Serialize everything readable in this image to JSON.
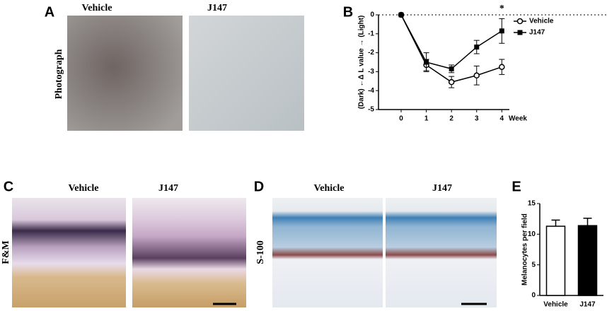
{
  "panels": {
    "A": {
      "label": "A",
      "columns": [
        "Vehicle",
        "J147"
      ],
      "row_label": "Photograph"
    },
    "C": {
      "label": "C",
      "columns": [
        "Vehicle",
        "J147"
      ],
      "row_label": "F&M"
    },
    "D": {
      "label": "D",
      "columns": [
        "Vehicle",
        "J147"
      ],
      "row_label": "S-100"
    }
  },
  "chart_data": [
    {
      "type": "line",
      "panel_label": "B",
      "ylabel": "(Dark) ←Δ L value → (Light)",
      "xlabel": "Week",
      "annotation": "*",
      "x": [
        0,
        1,
        2,
        3,
        4
      ],
      "xlim": [
        -0.9,
        4.3
      ],
      "xticks": [
        0,
        1,
        2,
        3,
        4
      ],
      "ylim": [
        -5,
        0
      ],
      "yticks": [
        0,
        -1,
        -2,
        -3,
        -4,
        -5
      ],
      "series": [
        {
          "name": "Vehicle",
          "color": "#000000",
          "marker": "open-circle",
          "values": [
            0,
            -2.65,
            -3.55,
            -3.2,
            -2.75
          ],
          "errors": [
            0,
            0.3,
            0.3,
            0.5,
            0.4
          ]
        },
        {
          "name": "J147",
          "color": "#000000",
          "marker": "square",
          "values": [
            0,
            -2.5,
            -2.85,
            -1.7,
            -0.85
          ],
          "errors": [
            0,
            0.5,
            0.2,
            0.35,
            0.65
          ]
        }
      ]
    },
    {
      "type": "bar",
      "panel_label": "E",
      "ylabel": "Melanocytes per field",
      "categories": [
        "Vehicle",
        "J147"
      ],
      "values": [
        11.3,
        11.4
      ],
      "errors": [
        1.0,
        1.2
      ],
      "colors": [
        "#ffffff",
        "#000000"
      ],
      "ylim": [
        0,
        15
      ],
      "yticks": [
        0,
        5,
        10,
        15
      ]
    }
  ]
}
